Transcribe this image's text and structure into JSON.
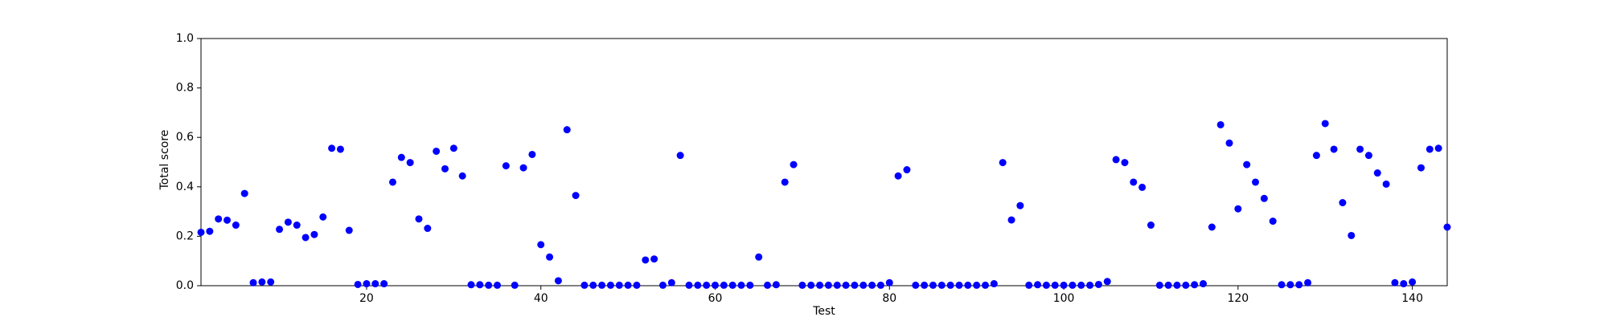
{
  "chart_data": {
    "type": "scatter",
    "xlabel": "Test",
    "ylabel": "Total score",
    "color": "#0000ff",
    "x": [
      1,
      2,
      3,
      4,
      5,
      6,
      7,
      8,
      9,
      10,
      11,
      12,
      13,
      14,
      15,
      16,
      17,
      18,
      19,
      20,
      21,
      22,
      23,
      24,
      25,
      26,
      27,
      28,
      29,
      30,
      31,
      32,
      33,
      34,
      35,
      36,
      37,
      38,
      39,
      40,
      41,
      42,
      43,
      44,
      45,
      46,
      47,
      48,
      49,
      50,
      51,
      52,
      53,
      54,
      55,
      56,
      57,
      58,
      59,
      60,
      61,
      62,
      63,
      64,
      65,
      66,
      67,
      68,
      69,
      70,
      71,
      72,
      73,
      74,
      75,
      76,
      77,
      78,
      79,
      80,
      81,
      82,
      83,
      84,
      85,
      86,
      87,
      88,
      89,
      90,
      91,
      92,
      93,
      94,
      95,
      96,
      97,
      98,
      99,
      100,
      101,
      102,
      103,
      104,
      105,
      106,
      107,
      108,
      109,
      110,
      111,
      112,
      113,
      114,
      115,
      116,
      117,
      118,
      119,
      120,
      121,
      122,
      123,
      124,
      125,
      126,
      127,
      128,
      129,
      130,
      131,
      132,
      133,
      134,
      135,
      136,
      137,
      138,
      139,
      140,
      141,
      142,
      143,
      144
    ],
    "values": [
      0.216,
      0.22,
      0.27,
      0.265,
      0.245,
      0.373,
      0.012,
      0.015,
      0.015,
      0.228,
      0.257,
      0.245,
      0.195,
      0.207,
      0.278,
      0.556,
      0.552,
      0.224,
      0.005,
      0.008,
      0.008,
      0.008,
      0.419,
      0.519,
      0.498,
      0.27,
      0.232,
      0.544,
      0.473,
      0.556,
      0.444,
      0.004,
      0.004,
      0.002,
      0.002,
      0.485,
      0.002,
      0.477,
      0.531,
      0.166,
      0.116,
      0.02,
      0.631,
      0.365,
      0.002,
      0.002,
      0.002,
      0.002,
      0.002,
      0.002,
      0.002,
      0.104,
      0.108,
      0.002,
      0.012,
      0.527,
      0.002,
      0.002,
      0.002,
      0.002,
      0.002,
      0.002,
      0.002,
      0.002,
      0.116,
      0.002,
      0.004,
      0.419,
      0.49,
      0.002,
      0.002,
      0.002,
      0.002,
      0.002,
      0.002,
      0.002,
      0.002,
      0.002,
      0.002,
      0.012,
      0.444,
      0.469,
      0.002,
      0.002,
      0.002,
      0.002,
      0.002,
      0.002,
      0.002,
      0.002,
      0.002,
      0.008,
      0.498,
      0.266,
      0.324,
      0.002,
      0.004,
      0.002,
      0.002,
      0.002,
      0.002,
      0.002,
      0.002,
      0.005,
      0.017,
      0.51,
      0.498,
      0.419,
      0.398,
      0.245,
      0.002,
      0.002,
      0.002,
      0.002,
      0.004,
      0.008,
      0.237,
      0.651,
      0.577,
      0.311,
      0.49,
      0.419,
      0.353,
      0.261,
      0.004,
      0.004,
      0.004,
      0.012,
      0.527,
      0.656,
      0.552,
      0.336,
      0.203,
      0.552,
      0.527,
      0.456,
      0.411,
      0.012,
      0.008,
      0.015,
      0.477,
      0.552,
      0.556,
      0.237
    ],
    "xlim": [
      1,
      144
    ],
    "xticks": [
      20,
      40,
      60,
      80,
      100,
      120,
      140
    ],
    "ylim": [
      0,
      1
    ],
    "yticks": [
      {
        "value": 0,
        "label": "0.0"
      },
      {
        "value": 0.2,
        "label": "0.2"
      },
      {
        "value": 0.4,
        "label": "0.4"
      },
      {
        "value": 0.6,
        "label": "0.6"
      },
      {
        "value": 0.8,
        "label": "0.8"
      },
      {
        "value": 1,
        "label": "1.0"
      }
    ]
  }
}
